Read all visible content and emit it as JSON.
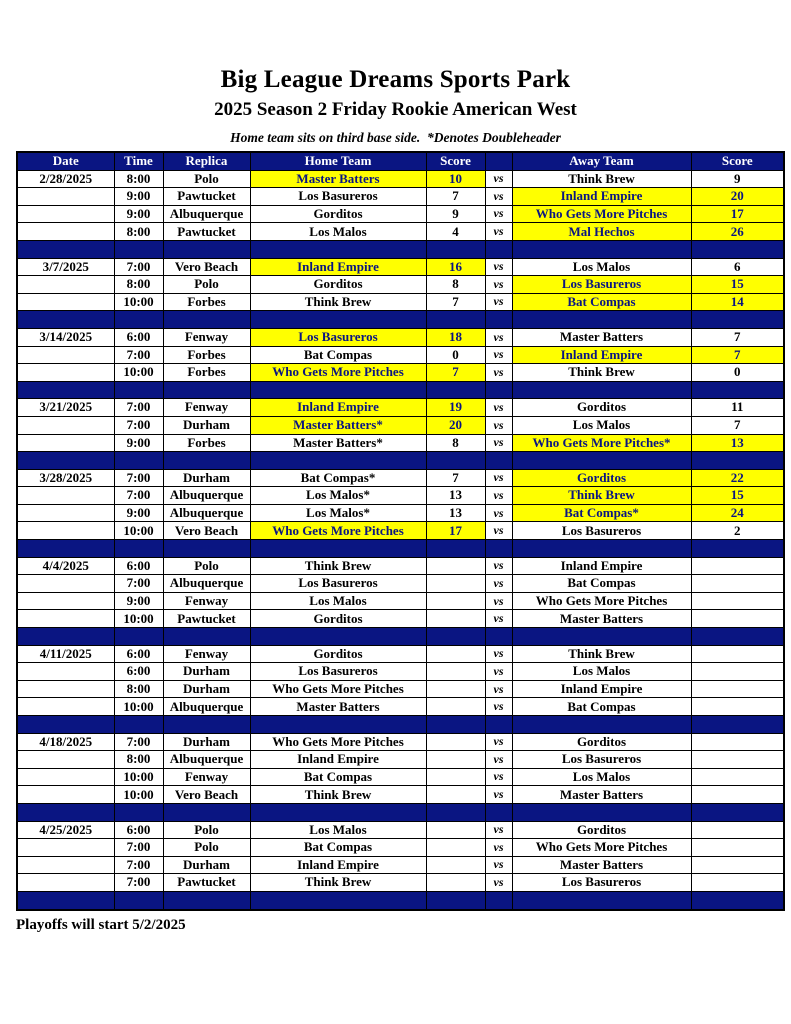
{
  "page": {
    "title": "Big League Dreams Sports Park",
    "subtitle": "2025 Season 2 Friday Rookie American West",
    "note": "Home team sits on third base side.  *Denotes Doubleheader",
    "footer": "Playoffs will start 5/2/2025"
  },
  "table": {
    "headers": [
      "Date",
      "Time",
      "Replica",
      "Home Team",
      "Score",
      "",
      "Away Team",
      "Score"
    ],
    "vs_label": "vs",
    "colors": {
      "header_bg": "#0a1582",
      "header_text": "#ffffff",
      "highlight": "#ffff00",
      "highlight_text": "#0a1582",
      "row_text": "#000000",
      "separator_bg": "#0a1582",
      "border": "#000000"
    },
    "blocks": [
      {
        "date": "2/28/2025",
        "games": [
          {
            "time": "8:00",
            "replica": "Polo",
            "home": "Master Batters",
            "home_score": "10",
            "home_win": true,
            "away": "Think Brew",
            "away_score": "9",
            "away_win": false
          },
          {
            "time": "9:00",
            "replica": "Pawtucket",
            "home": "Los Basureros",
            "home_score": "7",
            "home_win": false,
            "away": "Inland Empire",
            "away_score": "20",
            "away_win": true
          },
          {
            "time": "9:00",
            "replica": "Albuquerque",
            "home": "Gorditos",
            "home_score": "9",
            "home_win": false,
            "away": "Who Gets More Pitches",
            "away_score": "17",
            "away_win": true
          },
          {
            "time": "8:00",
            "replica": "Pawtucket",
            "home": "Los Malos",
            "home_score": "4",
            "home_win": false,
            "away": "Mal Hechos",
            "away_score": "26",
            "away_win": true
          }
        ]
      },
      {
        "date": "3/7/2025",
        "games": [
          {
            "time": "7:00",
            "replica": "Vero Beach",
            "home": "Inland Empire",
            "home_score": "16",
            "home_win": true,
            "away": "Los Malos",
            "away_score": "6",
            "away_win": false
          },
          {
            "time": "8:00",
            "replica": "Polo",
            "home": "Gorditos",
            "home_score": "8",
            "home_win": false,
            "away": "Los Basureros",
            "away_score": "15",
            "away_win": true
          },
          {
            "time": "10:00",
            "replica": "Forbes",
            "home": "Think Brew",
            "home_score": "7",
            "home_win": false,
            "away": "Bat Compas",
            "away_score": "14",
            "away_win": true
          }
        ]
      },
      {
        "date": "3/14/2025",
        "games": [
          {
            "time": "6:00",
            "replica": "Fenway",
            "home": "Los Basureros",
            "home_score": "18",
            "home_win": true,
            "away": "Master Batters",
            "away_score": "7",
            "away_win": false
          },
          {
            "time": "7:00",
            "replica": "Forbes",
            "home": "Bat Compas",
            "home_score": "0",
            "home_win": false,
            "away": "Inland Empire",
            "away_score": "7",
            "away_win": true
          },
          {
            "time": "10:00",
            "replica": "Forbes",
            "home": "Who Gets More Pitches",
            "home_score": "7",
            "home_win": true,
            "away": "Think Brew",
            "away_score": "0",
            "away_win": false
          }
        ]
      },
      {
        "date": "3/21/2025",
        "games": [
          {
            "time": "7:00",
            "replica": "Fenway",
            "home": "Inland Empire",
            "home_score": "19",
            "home_win": true,
            "away": "Gorditos",
            "away_score": "11",
            "away_win": false
          },
          {
            "time": "7:00",
            "replica": "Durham",
            "home": "Master Batters*",
            "home_score": "20",
            "home_win": true,
            "away": "Los Malos",
            "away_score": "7",
            "away_win": false
          },
          {
            "time": "9:00",
            "replica": "Forbes",
            "home": "Master Batters*",
            "home_score": "8",
            "home_win": false,
            "away": "Who Gets More Pitches*",
            "away_score": "13",
            "away_win": true
          }
        ]
      },
      {
        "date": "3/28/2025",
        "games": [
          {
            "time": "7:00",
            "replica": "Durham",
            "home": "Bat Compas*",
            "home_score": "7",
            "home_win": false,
            "away": "Gorditos",
            "away_score": "22",
            "away_win": true
          },
          {
            "time": "7:00",
            "replica": "Albuquerque",
            "home": "Los Malos*",
            "home_score": "13",
            "home_win": false,
            "away": "Think Brew",
            "away_score": "15",
            "away_win": true
          },
          {
            "time": "9:00",
            "replica": "Albuquerque",
            "home": "Los Malos*",
            "home_score": "13",
            "home_win": false,
            "away": "Bat Compas*",
            "away_score": "24",
            "away_win": true
          },
          {
            "time": "10:00",
            "replica": "Vero Beach",
            "home": "Who Gets More Pitches",
            "home_score": "17",
            "home_win": true,
            "away": "Los Basureros",
            "away_score": "2",
            "away_win": false
          }
        ]
      },
      {
        "date": "4/4/2025",
        "games": [
          {
            "time": "6:00",
            "replica": "Polo",
            "home": "Think Brew",
            "home_score": "",
            "home_win": false,
            "away": "Inland Empire",
            "away_score": "",
            "away_win": false
          },
          {
            "time": "7:00",
            "replica": "Albuquerque",
            "home": "Los Basureros",
            "home_score": "",
            "home_win": false,
            "away": "Bat Compas",
            "away_score": "",
            "away_win": false
          },
          {
            "time": "9:00",
            "replica": "Fenway",
            "home": "Los Malos",
            "home_score": "",
            "home_win": false,
            "away": "Who Gets More Pitches",
            "away_score": "",
            "away_win": false
          },
          {
            "time": "10:00",
            "replica": "Pawtucket",
            "home": "Gorditos",
            "home_score": "",
            "home_win": false,
            "away": "Master Batters",
            "away_score": "",
            "away_win": false
          }
        ]
      },
      {
        "date": "4/11/2025",
        "games": [
          {
            "time": "6:00",
            "replica": "Fenway",
            "home": "Gorditos",
            "home_score": "",
            "home_win": false,
            "away": "Think Brew",
            "away_score": "",
            "away_win": false
          },
          {
            "time": "6:00",
            "replica": "Durham",
            "home": "Los Basureros",
            "home_score": "",
            "home_win": false,
            "away": "Los Malos",
            "away_score": "",
            "away_win": false
          },
          {
            "time": "8:00",
            "replica": "Durham",
            "home": "Who Gets More Pitches",
            "home_score": "",
            "home_win": false,
            "away": "Inland Empire",
            "away_score": "",
            "away_win": false
          },
          {
            "time": "10:00",
            "replica": "Albuquerque",
            "home": "Master Batters",
            "home_score": "",
            "home_win": false,
            "away": "Bat Compas",
            "away_score": "",
            "away_win": false
          }
        ]
      },
      {
        "date": "4/18/2025",
        "games": [
          {
            "time": "7:00",
            "replica": "Durham",
            "home": "Who Gets More Pitches",
            "home_score": "",
            "home_win": false,
            "away": "Gorditos",
            "away_score": "",
            "away_win": false
          },
          {
            "time": "8:00",
            "replica": "Albuquerque",
            "home": "Inland Empire",
            "home_score": "",
            "home_win": false,
            "away": "Los Basureros",
            "away_score": "",
            "away_win": false
          },
          {
            "time": "10:00",
            "replica": "Fenway",
            "home": "Bat Compas",
            "home_score": "",
            "home_win": false,
            "away": "Los Malos",
            "away_score": "",
            "away_win": false
          },
          {
            "time": "10:00",
            "replica": "Vero Beach",
            "home": "Think Brew",
            "home_score": "",
            "home_win": false,
            "away": "Master Batters",
            "away_score": "",
            "away_win": false
          }
        ]
      },
      {
        "date": "4/25/2025",
        "games": [
          {
            "time": "6:00",
            "replica": "Polo",
            "home": "Los Malos",
            "home_score": "",
            "home_win": false,
            "away": "Gorditos",
            "away_score": "",
            "away_win": false
          },
          {
            "time": "7:00",
            "replica": "Polo",
            "home": "Bat Compas",
            "home_score": "",
            "home_win": false,
            "away": "Who Gets More Pitches",
            "away_score": "",
            "away_win": false
          },
          {
            "time": "7:00",
            "replica": "Durham",
            "home": "Inland Empire",
            "home_score": "",
            "home_win": false,
            "away": "Master Batters",
            "away_score": "",
            "away_win": false
          },
          {
            "time": "7:00",
            "replica": "Pawtucket",
            "home": "Think Brew",
            "home_score": "",
            "home_win": false,
            "away": "Los Basureros",
            "away_score": "",
            "away_win": false
          }
        ]
      }
    ]
  }
}
